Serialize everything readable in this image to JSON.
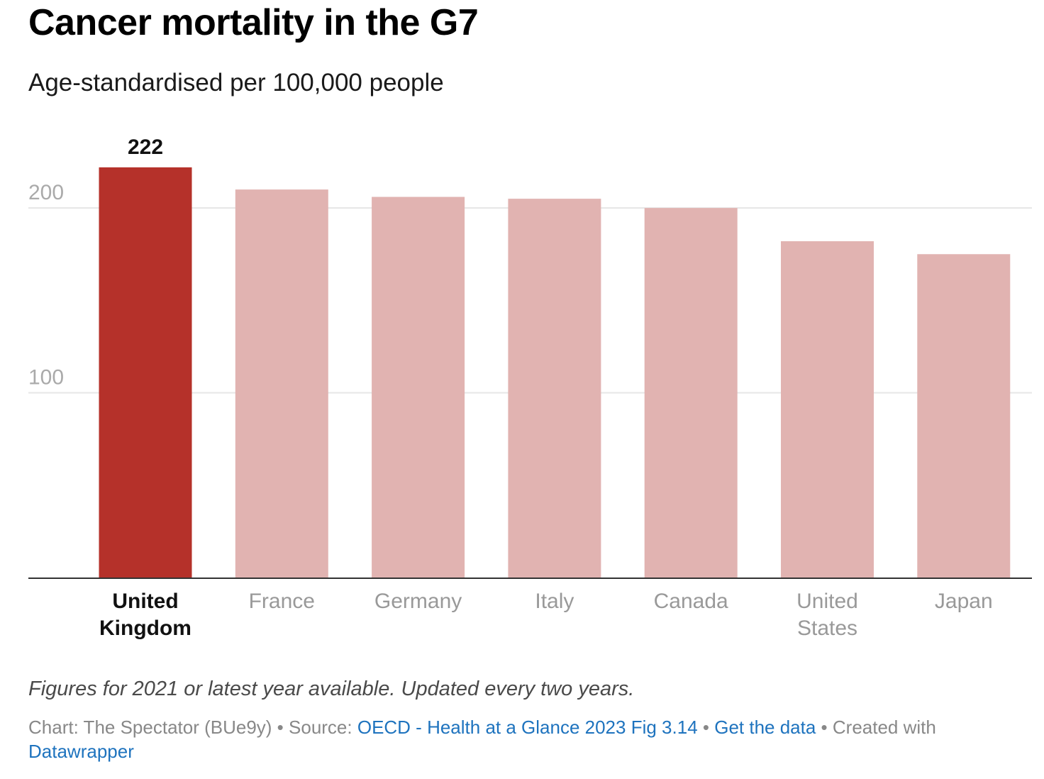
{
  "header": {
    "title": "Cancer mortality in the G7",
    "subtitle": "Age-standardised per 100,000 people"
  },
  "colors": {
    "highlight": "#b5312a",
    "muted": "#e1b3b1",
    "gridline": "#e6e6e6",
    "baseline": "#333333",
    "tick_label": "#aaaaaa",
    "category_label": "#999999",
    "link": "#1e73be"
  },
  "chart_data": {
    "type": "bar",
    "title": "Cancer mortality in the G7",
    "subtitle": "Age-standardised per 100,000 people",
    "xlabel": "",
    "ylabel": "",
    "ylim": [
      0,
      235
    ],
    "yticks": [
      100,
      200
    ],
    "ytick_labels": [
      "100",
      "200"
    ],
    "grid": true,
    "categories": [
      [
        "United",
        "Kingdom"
      ],
      [
        "France"
      ],
      [
        "Germany"
      ],
      [
        "Italy"
      ],
      [
        "Canada"
      ],
      [
        "United",
        "States"
      ],
      [
        "Japan"
      ]
    ],
    "values": [
      222,
      210,
      206,
      205,
      200,
      182,
      175
    ],
    "highlight_index": 0,
    "data_labels": [
      {
        "index": 0,
        "text": "222"
      }
    ]
  },
  "footer": {
    "note": "Figures for 2021 or latest year available. Updated every two years.",
    "chart_credit": "Chart: The Spectator (BUe9y)",
    "sep1": " • ",
    "source_label": "Source: ",
    "source_link": "OECD - Health at a Glance 2023 Fig 3.14",
    "sep2": " • ",
    "data_link": "Get the data",
    "sep3": " • ",
    "created_with": "Created with ",
    "datawrapper_link": "Datawrapper"
  }
}
